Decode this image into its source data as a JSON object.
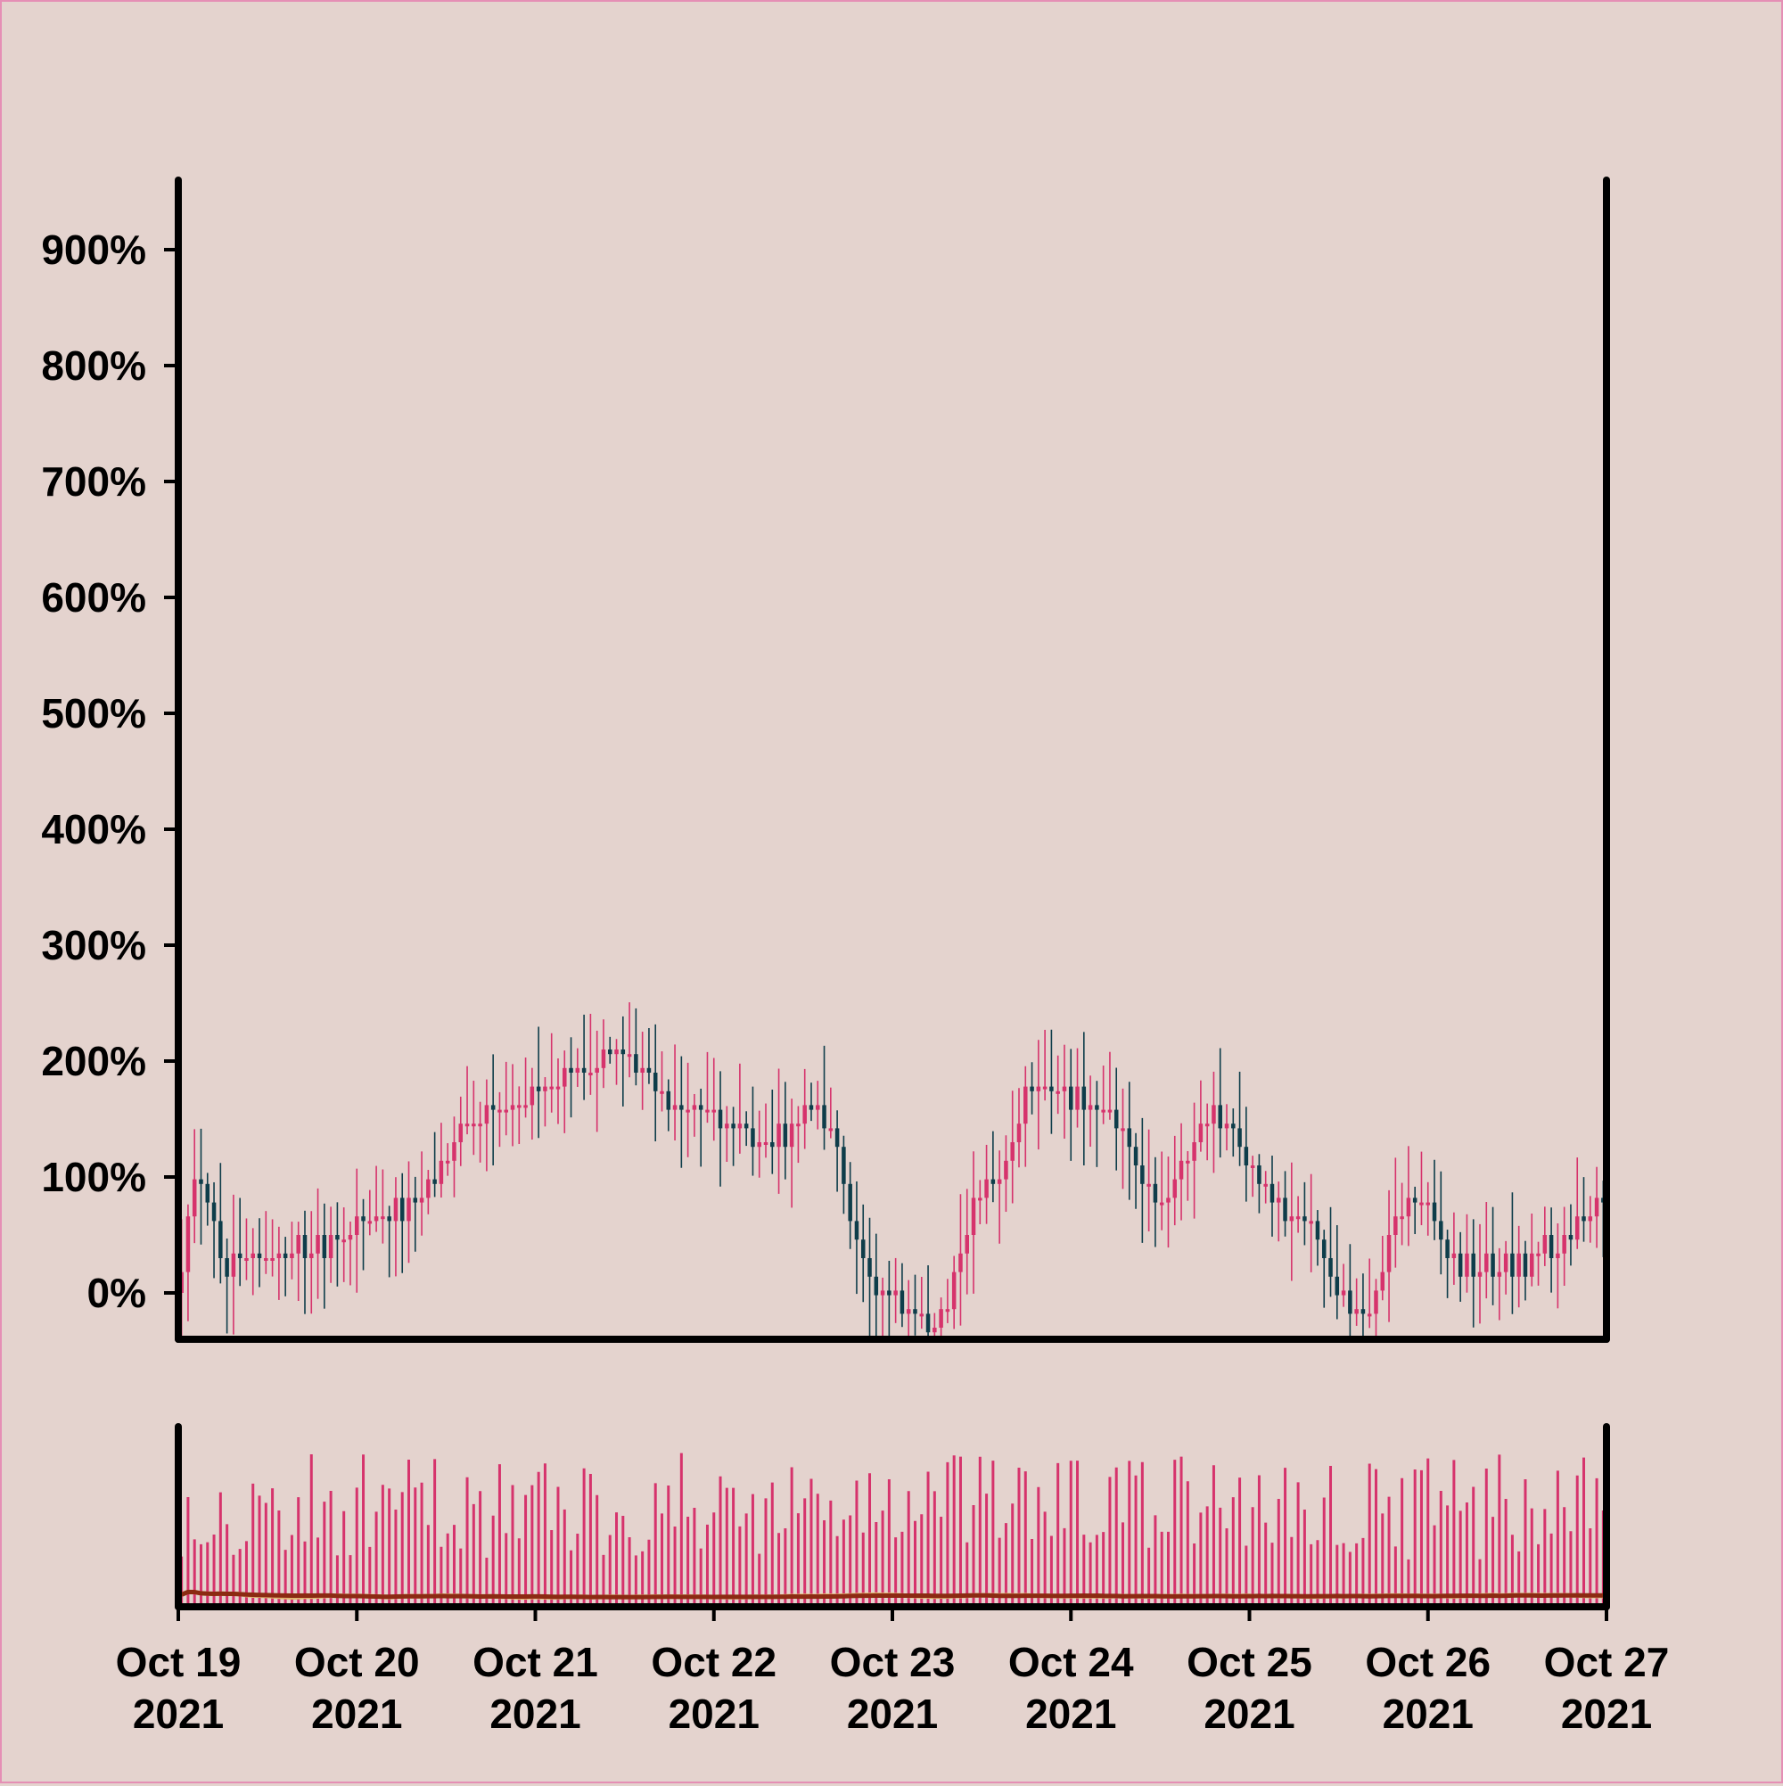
{
  "chart_data": {
    "type": "candlestick",
    "title": "",
    "xlabel": "",
    "ylabel": "",
    "ylim": [
      -40,
      960
    ],
    "y_ticks": [
      "0%",
      "100%",
      "200%",
      "300%",
      "400%",
      "500%",
      "600%",
      "700%",
      "800%",
      "900%"
    ],
    "y_tick_values": [
      0,
      100,
      200,
      300,
      400,
      500,
      600,
      700,
      800,
      900
    ],
    "x_range": [
      "2021-10-19",
      "2021-10-27"
    ],
    "x_ticks": [
      {
        "date": "2021-10-19",
        "label": [
          "Oct 19",
          "2021"
        ]
      },
      {
        "date": "2021-10-20",
        "label": [
          "Oct 20",
          "2021"
        ]
      },
      {
        "date": "2021-10-21",
        "label": [
          "Oct 21",
          "2021"
        ]
      },
      {
        "date": "2021-10-22",
        "label": [
          "Oct 22",
          "2021"
        ]
      },
      {
        "date": "2021-10-23",
        "label": [
          "Oct 23",
          "2021"
        ]
      },
      {
        "date": "2021-10-24",
        "label": [
          "Oct 24",
          "2021"
        ]
      },
      {
        "date": "2021-10-25",
        "label": [
          "Oct 25",
          "2021"
        ]
      },
      {
        "date": "2021-10-26",
        "label": [
          "Oct 26",
          "2021"
        ]
      },
      {
        "date": "2021-10-27",
        "label": [
          "Oct 27",
          "2021"
        ]
      }
    ],
    "price_trend_keypoints": [
      {
        "date": "2021-10-19T00:00",
        "value": 0
      },
      {
        "date": "2021-10-19T03:00",
        "value": 100
      },
      {
        "date": "2021-10-19T07:00",
        "value": 20
      },
      {
        "date": "2021-10-19T18:00",
        "value": 40
      },
      {
        "date": "2021-10-20T06:00",
        "value": 70
      },
      {
        "date": "2021-10-20T18:00",
        "value": 150
      },
      {
        "date": "2021-10-21T06:00",
        "value": 190
      },
      {
        "date": "2021-10-21T12:00",
        "value": 205
      },
      {
        "date": "2021-10-21T20:00",
        "value": 160
      },
      {
        "date": "2021-10-22T08:00",
        "value": 130
      },
      {
        "date": "2021-10-22T14:00",
        "value": 160
      },
      {
        "date": "2021-10-22T23:00",
        "value": 0
      },
      {
        "date": "2021-10-23T06:00",
        "value": -20
      },
      {
        "date": "2021-10-23T14:00",
        "value": 100
      },
      {
        "date": "2021-10-23T20:00",
        "value": 180
      },
      {
        "date": "2021-10-24T06:00",
        "value": 150
      },
      {
        "date": "2021-10-24T12:00",
        "value": 80
      },
      {
        "date": "2021-10-24T20:00",
        "value": 150
      },
      {
        "date": "2021-10-25T06:00",
        "value": 70
      },
      {
        "date": "2021-10-25T16:00",
        "value": -20
      },
      {
        "date": "2021-10-25T22:00",
        "value": 80
      },
      {
        "date": "2021-10-26T06:00",
        "value": 20
      },
      {
        "date": "2021-10-26T12:00",
        "value": 20
      },
      {
        "date": "2021-10-26T18:00",
        "value": 40
      },
      {
        "date": "2021-10-27T00:00",
        "value": 80
      }
    ],
    "series": [
      {
        "kind": "candles"
      },
      {
        "kind": "volume"
      },
      {
        "kind": "volume-moving-average"
      },
      {
        "kind": "volume-moving-average"
      }
    ],
    "colors": {
      "background": "#e4d3ce",
      "border": "#e58fb5",
      "up": "#d6336c",
      "down": "#0e3d4a",
      "volume": "#d6336c",
      "ma_fast": "#e0b46e",
      "ma_slow": "#8b2a12",
      "axis": "#000000"
    },
    "grid": false,
    "legend": "none"
  }
}
